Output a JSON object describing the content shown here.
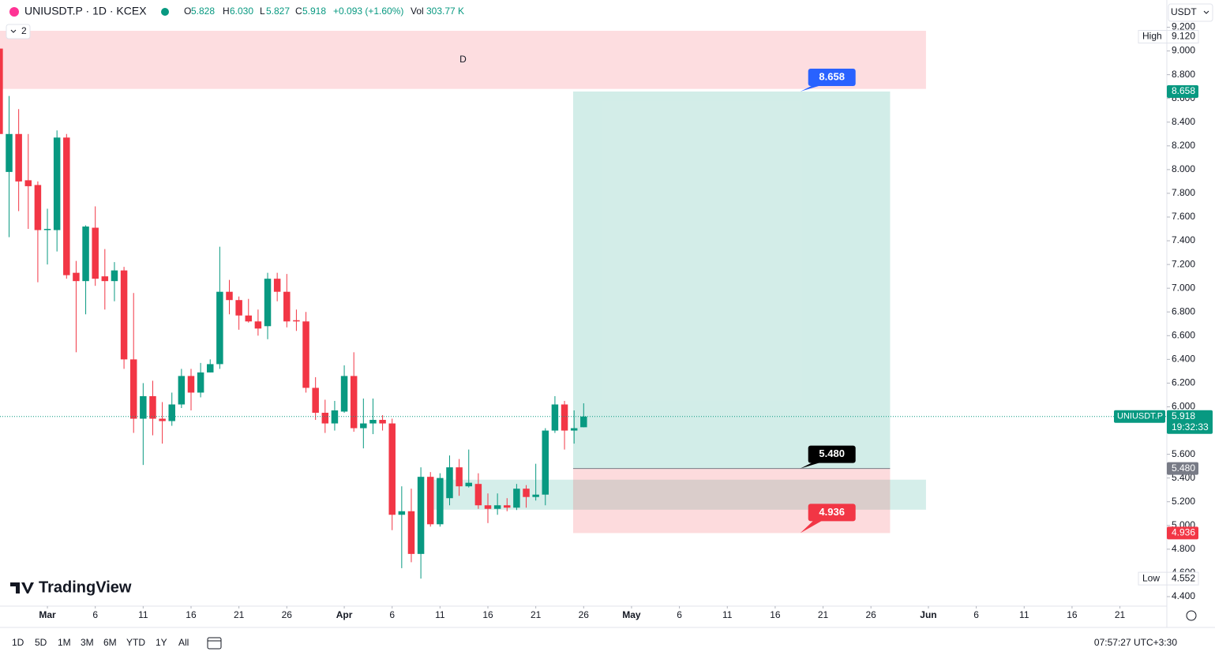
{
  "header": {
    "title": "UNIUSDT.P · 1D · KCEX",
    "o": "O",
    "o_value": "5.828",
    "h": "H",
    "h_value": "6.030",
    "l": "L",
    "l_value": "5.827",
    "c": "C",
    "c_value": "5.918",
    "change": "+0.093 (+1.60%)",
    "vol": "Vol",
    "volume": "303.77 K",
    "currency": "USDT",
    "indicators": "2"
  },
  "chart_data": {
    "type": "candlestick",
    "series": [
      {
        "name": "UNIUSDT.P",
        "up_color": "#089981",
        "down_color": "#f23645",
        "x": [
          -5,
          -4,
          -3,
          -2,
          -1,
          0,
          1,
          2,
          3,
          4,
          5,
          6,
          7,
          8,
          9,
          10,
          11,
          12,
          13,
          14,
          15,
          16,
          17,
          18,
          19,
          20,
          21,
          22,
          23,
          24,
          25,
          26,
          27,
          28,
          29,
          30,
          31,
          32,
          33,
          34,
          35,
          36,
          37,
          38,
          39,
          40,
          41,
          42,
          43,
          44,
          45,
          46,
          47,
          48,
          49,
          50,
          51,
          52,
          53,
          54,
          55,
          56
        ],
        "open": [
          9.02,
          7.98,
          8.3,
          7.91,
          7.87,
          7.49,
          7.49,
          8.27,
          7.13,
          7.06,
          7.51,
          7.1,
          7.06,
          7.15,
          6.4,
          5.9,
          6.09,
          5.9,
          5.88,
          6.02,
          6.26,
          6.12,
          6.29,
          6.36,
          6.97,
          6.9,
          6.77,
          6.72,
          6.68,
          7.08,
          6.97,
          6.73,
          6.72,
          6.16,
          5.95,
          5.86,
          5.96,
          6.26,
          5.82,
          5.86,
          5.89,
          5.86,
          5.09,
          5.12,
          4.76,
          5.41,
          5.01,
          5.23,
          5.49,
          5.33,
          5.35,
          5.17,
          5.14,
          5.17,
          5.15,
          5.31,
          5.24,
          5.26,
          5.8,
          6.02,
          5.8,
          5.828
        ],
        "high": [
          9.12,
          8.62,
          8.51,
          8.3,
          7.9,
          7.67,
          8.33,
          8.3,
          7.23,
          7.53,
          7.69,
          7.33,
          7.22,
          7.18,
          6.96,
          6.2,
          6.22,
          6.04,
          6.12,
          6.32,
          6.32,
          6.37,
          6.4,
          7.35,
          7.07,
          6.93,
          6.91,
          6.82,
          7.13,
          7.13,
          7.12,
          6.82,
          6.8,
          6.25,
          6.06,
          6.05,
          6.35,
          6.46,
          6.07,
          6.07,
          5.93,
          5.9,
          5.33,
          5.31,
          5.49,
          5.45,
          5.44,
          5.59,
          5.56,
          5.64,
          5.44,
          5.27,
          5.27,
          5.23,
          5.35,
          5.34,
          5.52,
          5.82,
          6.09,
          6.05,
          5.97,
          6.03
        ],
        "low": [
          8.2,
          7.43,
          7.65,
          7.5,
          7.05,
          7.2,
          7.31,
          7.08,
          6.46,
          6.78,
          7.02,
          6.82,
          6.89,
          6.32,
          5.78,
          5.51,
          5.76,
          5.69,
          5.84,
          5.99,
          5.97,
          6.08,
          6.29,
          6.32,
          6.78,
          6.65,
          6.71,
          6.6,
          6.57,
          6.89,
          6.67,
          6.64,
          6.12,
          5.89,
          5.78,
          5.8,
          5.95,
          5.79,
          5.65,
          5.77,
          5.8,
          4.96,
          4.64,
          4.69,
          4.552,
          4.99,
          4.99,
          5.17,
          5.25,
          5.32,
          5.14,
          5.02,
          5.09,
          5.12,
          5.13,
          5.15,
          5.21,
          5.17,
          5.78,
          5.64,
          5.69,
          5.827
        ],
        "close": [
          8.3,
          8.3,
          7.9,
          7.86,
          7.49,
          7.5,
          8.27,
          7.11,
          7.06,
          7.52,
          7.08,
          7.06,
          7.15,
          6.4,
          5.9,
          6.09,
          5.9,
          5.88,
          6.02,
          6.26,
          6.12,
          6.29,
          6.36,
          6.97,
          6.9,
          6.77,
          6.72,
          6.66,
          7.08,
          6.97,
          6.72,
          6.72,
          6.16,
          5.95,
          5.86,
          5.97,
          6.26,
          5.82,
          5.86,
          5.89,
          5.86,
          5.09,
          5.12,
          4.76,
          5.41,
          5.01,
          5.4,
          5.49,
          5.33,
          5.36,
          5.17,
          5.14,
          5.17,
          5.15,
          5.31,
          5.24,
          5.26,
          5.8,
          6.02,
          5.8,
          5.82,
          5.918
        ]
      }
    ],
    "xlim": [
      -4.95,
      116.9
    ],
    "ylim": [
      4.32,
      9.23
    ],
    "xticks": [
      {
        "value": 0,
        "label": "Mar"
      },
      {
        "value": 5,
        "label": "6"
      },
      {
        "value": 10,
        "label": "11"
      },
      {
        "value": 15,
        "label": "16"
      },
      {
        "value": 20,
        "label": "21"
      },
      {
        "value": 25,
        "label": "26"
      },
      {
        "value": 31,
        "label": "Apr"
      },
      {
        "value": 36,
        "label": "6"
      },
      {
        "value": 41,
        "label": "11"
      },
      {
        "value": 46,
        "label": "16"
      },
      {
        "value": 51,
        "label": "21"
      },
      {
        "value": 56,
        "label": "26"
      },
      {
        "value": 61,
        "label": "May"
      },
      {
        "value": 66,
        "label": "6"
      },
      {
        "value": 71,
        "label": "11"
      },
      {
        "value": 76,
        "label": "16"
      },
      {
        "value": 81,
        "label": "21"
      },
      {
        "value": 86,
        "label": "26"
      },
      {
        "value": 92,
        "label": "Jun"
      },
      {
        "value": 97,
        "label": "6"
      },
      {
        "value": 102,
        "label": "11"
      },
      {
        "value": 107,
        "label": "16"
      },
      {
        "value": 112,
        "label": "21"
      }
    ],
    "yticks": [
      {
        "value": 4.4,
        "label": "4.400"
      },
      {
        "value": 4.6,
        "label": "4.600"
      },
      {
        "value": 4.8,
        "label": "4.800"
      },
      {
        "value": 5.0,
        "label": "5.000"
      },
      {
        "value": 5.2,
        "label": "5.200"
      },
      {
        "value": 5.4,
        "label": "5.400"
      },
      {
        "value": 5.6,
        "label": "5.600"
      },
      {
        "value": 5.8,
        "label": "5.800"
      },
      {
        "value": 6.0,
        "label": "6.000"
      },
      {
        "value": 6.2,
        "label": "6.200"
      },
      {
        "value": 6.4,
        "label": "6.400"
      },
      {
        "value": 6.6,
        "label": "6.600"
      },
      {
        "value": 6.8,
        "label": "6.800"
      },
      {
        "value": 7.0,
        "label": "7.000"
      },
      {
        "value": 7.2,
        "label": "7.200"
      },
      {
        "value": 7.4,
        "label": "7.400"
      },
      {
        "value": 7.6,
        "label": "7.600"
      },
      {
        "value": 7.8,
        "label": "7.800"
      },
      {
        "value": 8.0,
        "label": "8.000"
      },
      {
        "value": 8.2,
        "label": "8.200"
      },
      {
        "value": 8.4,
        "label": "8.400"
      },
      {
        "value": 8.6,
        "label": "8.600"
      },
      {
        "value": 8.8,
        "label": "8.800"
      },
      {
        "value": 9.0,
        "label": "9.000"
      },
      {
        "value": 9.2,
        "label": "9.200"
      }
    ],
    "grid": false,
    "zones": [
      {
        "label": "D",
        "color": "#f23645",
        "xlim": [
          -4.95,
          91.75
        ],
        "ylim": [
          8.68,
          9.17
        ]
      },
      {
        "color": "#089981",
        "xlim": [
          39.6,
          91.75
        ],
        "ylim": [
          5.133,
          5.386
        ]
      }
    ],
    "position": {
      "xlim": [
        54.9,
        88.0
      ],
      "target": {
        "value": 8.658,
        "label": "8.658"
      },
      "entry": {
        "value": 5.48,
        "label": "5.480"
      },
      "stop": {
        "value": 4.936,
        "label": "4.936"
      }
    },
    "markers": [
      {
        "name": "High",
        "price": {
          "value": 9.12,
          "label": "9.120"
        }
      },
      {
        "name": "Low",
        "price": {
          "value": 4.552,
          "label": "4.552"
        }
      }
    ],
    "last_price": {
      "value": 5.918,
      "label": "5.918"
    },
    "countdown": "19:32:33"
  },
  "watermark": "TradingView",
  "toolbar": {
    "ranges": [
      "1D",
      "5D",
      "1M",
      "3M",
      "6M",
      "YTD",
      "1Y",
      "All"
    ],
    "clock": "07:57:27 UTC+3:30"
  }
}
